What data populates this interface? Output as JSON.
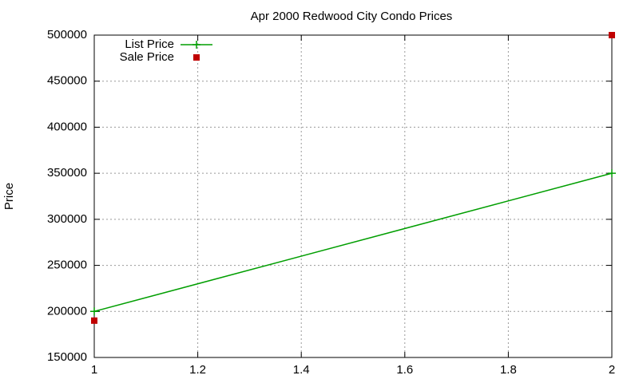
{
  "chart_data": {
    "type": "line",
    "title": "Apr 2000 Redwood City Condo Prices",
    "y_label": "Price",
    "x": [
      1,
      2
    ],
    "series": [
      {
        "name": "List Price",
        "color": "#009e00",
        "style": "linespoints",
        "values": [
          200000,
          350000
        ]
      },
      {
        "name": "Sale Price",
        "color": "#c00000",
        "style": "points",
        "values": [
          190000,
          500000
        ]
      }
    ],
    "xlim": [
      1,
      2
    ],
    "xticks": [
      1,
      1.2,
      1.4,
      1.6,
      1.8,
      2
    ],
    "ylim": [
      150000,
      500000
    ],
    "yticks": [
      150000,
      200000,
      250000,
      300000,
      350000,
      400000,
      450000,
      500000
    ],
    "grid": true,
    "legend": "top-left"
  }
}
